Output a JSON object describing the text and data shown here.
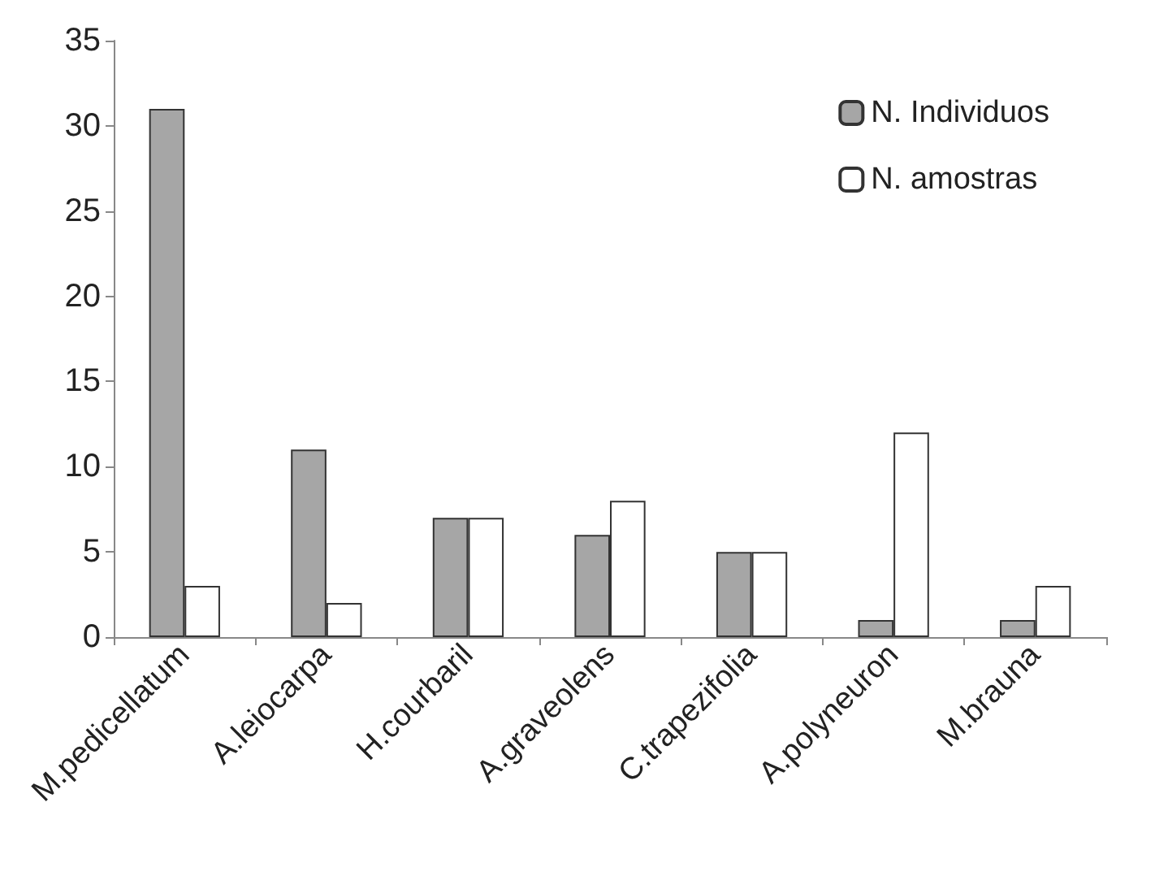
{
  "chart_data": {
    "type": "bar",
    "categories": [
      "M.pedicellatum",
      "A.leiocarpa",
      "H.courbaril",
      "A.graveolens",
      "C.trapezifolia",
      "A.polyneuron",
      "M.brauna"
    ],
    "series": [
      {
        "name": "N. Individuos",
        "color": "#a6a6a6",
        "values": [
          31,
          11,
          7,
          6,
          5,
          1,
          1
        ]
      },
      {
        "name": "N. amostras",
        "color": "#ffffff",
        "values": [
          3,
          2,
          7,
          8,
          5,
          12,
          3
        ]
      }
    ],
    "ylim": [
      0,
      35
    ],
    "yticks": [
      0,
      5,
      10,
      15,
      20,
      25,
      30,
      35
    ],
    "grid": false,
    "legend": "top right"
  }
}
